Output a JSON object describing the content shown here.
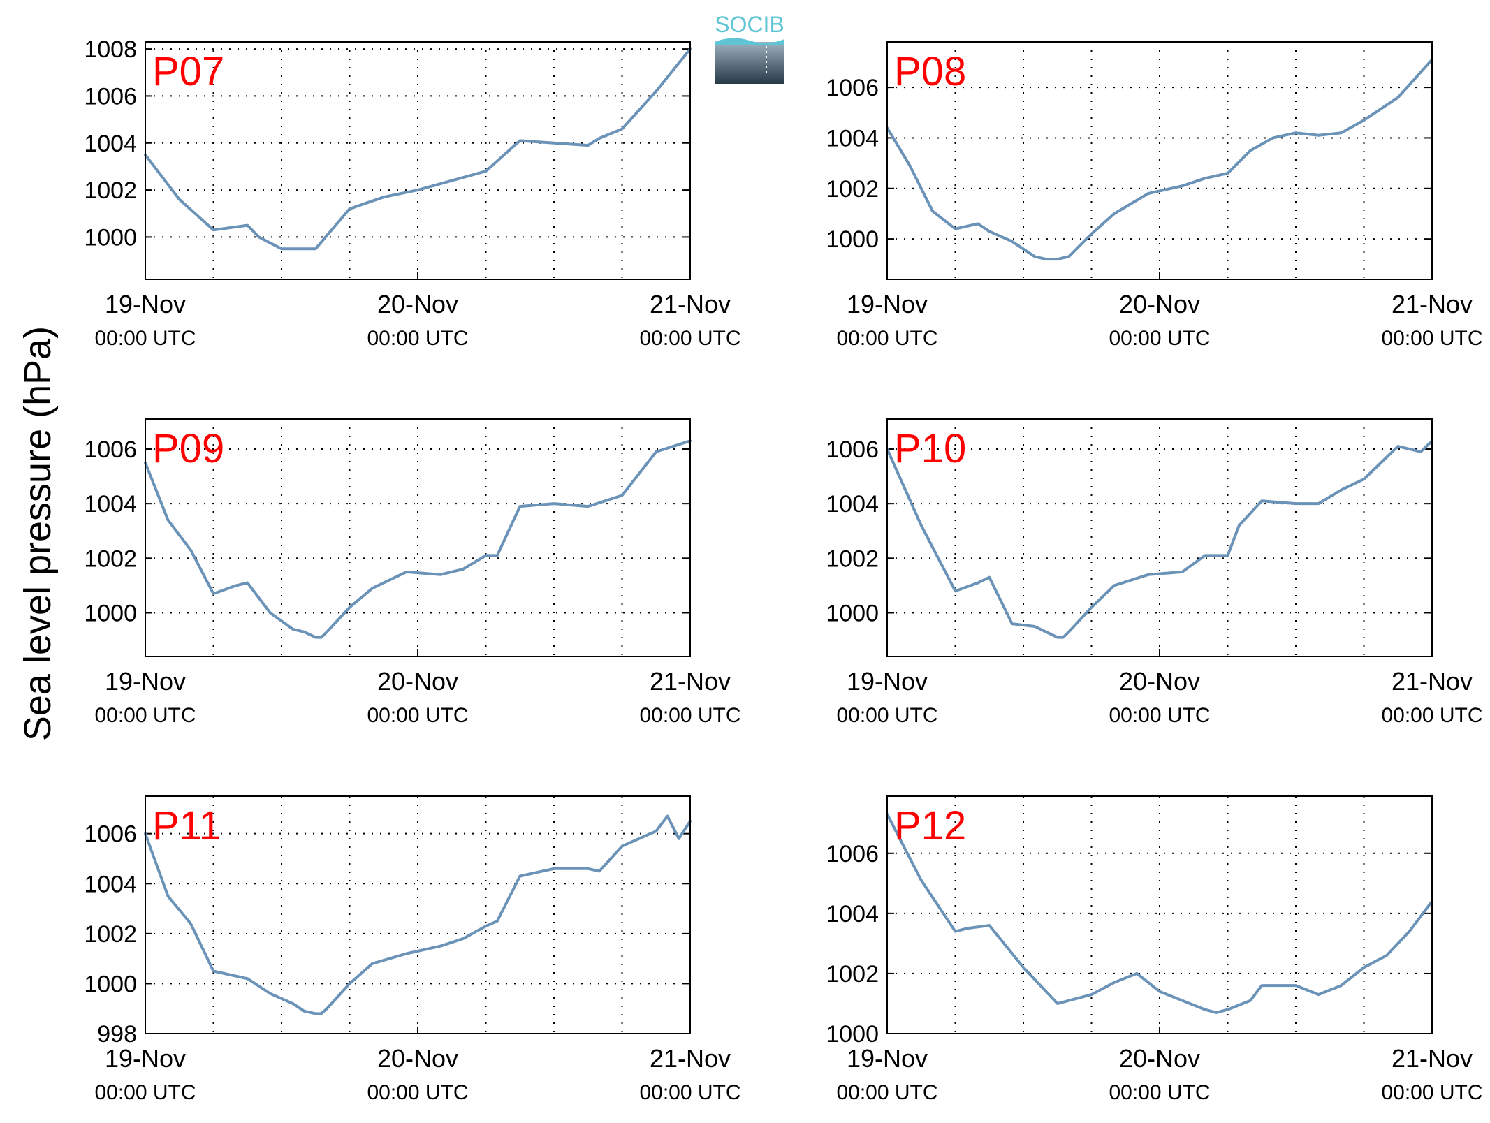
{
  "figure": {
    "ylabel": "Sea level pressure (hPa)",
    "logo": {
      "text": "SOCIB"
    },
    "colors": {
      "line": "#6b93b8",
      "panel_title": "#ff0000",
      "logo_text": "#5fc4d4"
    }
  },
  "chart_data": [
    {
      "type": "line",
      "title": "P07",
      "ylim": [
        998.2,
        1008.3
      ],
      "yticks": [
        1000,
        1002,
        1004,
        1006,
        1008
      ],
      "grid": true,
      "xticks": [
        {
          "date": "19-Nov",
          "time": "00:00 UTC"
        },
        {
          "date": "20-Nov",
          "time": "00:00 UTC"
        },
        {
          "date": "21-Nov",
          "time": "00:00 UTC"
        }
      ],
      "series": [
        {
          "x": [
            0,
            3,
            6,
            9,
            10,
            12,
            15,
            18,
            21,
            24,
            27,
            30,
            33,
            36,
            39,
            40,
            42,
            45,
            48
          ],
          "y": [
            1003.5,
            1001.6,
            1000.3,
            1000.5,
            1000.0,
            999.5,
            999.5,
            1001.2,
            1001.7,
            1002.0,
            1002.4,
            1002.8,
            1004.1,
            1004.0,
            1003.9,
            1004.2,
            1004.6,
            1006.2,
            1008.0
          ]
        }
      ]
    },
    {
      "type": "line",
      "title": "P08",
      "ylim": [
        998.4,
        1007.8
      ],
      "yticks": [
        1000,
        1002,
        1004,
        1006
      ],
      "grid": true,
      "xticks": [
        {
          "date": "19-Nov",
          "time": "00:00 UTC"
        },
        {
          "date": "20-Nov",
          "time": "00:00 UTC"
        },
        {
          "date": "21-Nov",
          "time": "00:00 UTC"
        }
      ],
      "series": [
        {
          "x": [
            0,
            2,
            4,
            6,
            8,
            9,
            11,
            13,
            14,
            15,
            16,
            18,
            20,
            23,
            26,
            28,
            30,
            32,
            34,
            36,
            38,
            40,
            42,
            45,
            48
          ],
          "y": [
            1004.4,
            1002.9,
            1001.1,
            1000.4,
            1000.6,
            1000.3,
            999.9,
            999.3,
            999.2,
            999.2,
            999.3,
            1000.2,
            1001.0,
            1001.8,
            1002.1,
            1002.4,
            1002.6,
            1003.5,
            1004.0,
            1004.2,
            1004.1,
            1004.2,
            1004.7,
            1005.6,
            1007.1
          ]
        }
      ]
    },
    {
      "type": "line",
      "title": "P09",
      "ylim": [
        998.4,
        1007.1
      ],
      "yticks": [
        1000,
        1002,
        1004,
        1006
      ],
      "grid": true,
      "xticks": [
        {
          "date": "19-Nov",
          "time": "00:00 UTC"
        },
        {
          "date": "20-Nov",
          "time": "00:00 UTC"
        },
        {
          "date": "21-Nov",
          "time": "00:00 UTC"
        }
      ],
      "series": [
        {
          "x": [
            0,
            2,
            4,
            6,
            8,
            9,
            11,
            13,
            14,
            15,
            15.5,
            16,
            18,
            20,
            23,
            26,
            28,
            30,
            31,
            33,
            36,
            39,
            42,
            45,
            48
          ],
          "y": [
            1005.5,
            1003.4,
            1002.3,
            1000.7,
            1001.0,
            1001.1,
            1000.0,
            999.4,
            999.3,
            999.1,
            999.1,
            999.3,
            1000.2,
            1000.9,
            1001.5,
            1001.4,
            1001.6,
            1002.1,
            1002.1,
            1003.9,
            1004.0,
            1003.9,
            1004.3,
            1005.9,
            1006.3
          ]
        }
      ]
    },
    {
      "type": "line",
      "title": "P10",
      "ylim": [
        998.4,
        1007.1
      ],
      "yticks": [
        1000,
        1002,
        1004,
        1006
      ],
      "grid": true,
      "xticks": [
        {
          "date": "19-Nov",
          "time": "00:00 UTC"
        },
        {
          "date": "20-Nov",
          "time": "00:00 UTC"
        },
        {
          "date": "21-Nov",
          "time": "00:00 UTC"
        }
      ],
      "series": [
        {
          "x": [
            0,
            3,
            6,
            8,
            9,
            11,
            13,
            14,
            15,
            15.5,
            16,
            18,
            20,
            23,
            26,
            28,
            30,
            31,
            33,
            36,
            38,
            40,
            42,
            45,
            47,
            48
          ],
          "y": [
            1006.0,
            1003.2,
            1000.8,
            1001.1,
            1001.3,
            999.6,
            999.5,
            999.3,
            999.1,
            999.1,
            999.3,
            1000.2,
            1001.0,
            1001.4,
            1001.5,
            1002.1,
            1002.1,
            1003.2,
            1004.1,
            1004.0,
            1004.0,
            1004.5,
            1004.9,
            1006.1,
            1005.9,
            1006.3
          ]
        }
      ]
    },
    {
      "type": "line",
      "title": "P11",
      "ylim": [
        998.0,
        1007.5
      ],
      "yticks": [
        998,
        1000,
        1002,
        1004,
        1006
      ],
      "grid": true,
      "xticks": [
        {
          "date": "19-Nov",
          "time": "00:00 UTC"
        },
        {
          "date": "20-Nov",
          "time": "00:00 UTC"
        },
        {
          "date": "21-Nov",
          "time": "00:00 UTC"
        }
      ],
      "series": [
        {
          "x": [
            0,
            2,
            4,
            6,
            8,
            9,
            11,
            13,
            14,
            15,
            15.5,
            16,
            18,
            20,
            23,
            26,
            28,
            30,
            31,
            33,
            36,
            39,
            40,
            42,
            45,
            46,
            47,
            48
          ],
          "y": [
            1006.0,
            1003.5,
            1002.4,
            1000.5,
            1000.3,
            1000.2,
            999.6,
            999.2,
            998.9,
            998.8,
            998.8,
            999.0,
            1000.0,
            1000.8,
            1001.2,
            1001.5,
            1001.8,
            1002.3,
            1002.5,
            1004.3,
            1004.6,
            1004.6,
            1004.5,
            1005.5,
            1006.1,
            1006.7,
            1005.8,
            1006.5
          ]
        }
      ]
    },
    {
      "type": "line",
      "title": "P12",
      "ylim": [
        1000.0,
        1007.9
      ],
      "yticks": [
        1000,
        1002,
        1004,
        1006
      ],
      "grid": true,
      "xticks": [
        {
          "date": "19-Nov",
          "time": "00:00 UTC"
        },
        {
          "date": "20-Nov",
          "time": "00:00 UTC"
        },
        {
          "date": "21-Nov",
          "time": "00:00 UTC"
        }
      ],
      "series": [
        {
          "x": [
            0,
            3,
            6,
            7,
            9,
            12,
            15,
            17,
            18,
            20,
            22,
            24,
            26,
            28,
            29,
            30,
            32,
            33,
            36,
            38,
            40,
            42,
            44,
            46,
            48
          ],
          "y": [
            1007.3,
            1005.1,
            1003.4,
            1003.5,
            1003.6,
            1002.2,
            1001.0,
            1001.2,
            1001.3,
            1001.7,
            1002.0,
            1001.4,
            1001.1,
            1000.8,
            1000.7,
            1000.8,
            1001.1,
            1001.6,
            1001.6,
            1001.3,
            1001.6,
            1002.2,
            1002.6,
            1003.4,
            1004.4
          ]
        }
      ]
    }
  ]
}
